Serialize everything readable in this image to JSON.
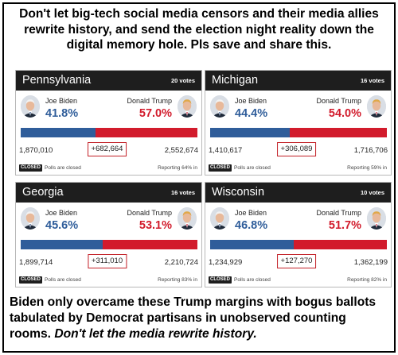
{
  "headline": "Don't let big-tech social media censors and their media allies rewrite history, and send the election night reality down the digital memory hole. Pls save and share this.",
  "footer": {
    "text": "Biden only overcame these Trump margins with bogus ballots tabulated by Democrat partisans in unobserved counting rooms. ",
    "emphasis": "Don't let the media rewrite history."
  },
  "colors": {
    "dem": "#2f5d9a",
    "rep": "#d21b2c",
    "header": "#1e1e1e",
    "margin_box": "#c21f26"
  },
  "cards": [
    {
      "state": "Pennsylvania",
      "votes": "20 votes",
      "dem_name": "Joe Biden",
      "dem_pct": "41.8%",
      "dem_votes": "1,870,010",
      "rep_name": "Donald Trump",
      "rep_pct": "57.0%",
      "rep_votes": "2,552,674",
      "margin": "+682,664",
      "status_badge": "CLOSED",
      "status_text": "Polls are closed",
      "reporting": "Reporting 64% in",
      "dem_share": 0.418,
      "rep_share": 0.57,
      "dem_avatar": "biden-photo",
      "rep_avatar": "trump-photo"
    },
    {
      "state": "Michigan",
      "votes": "16 votes",
      "dem_name": "Joe Biden",
      "dem_pct": "44.4%",
      "dem_votes": "1,410,617",
      "rep_name": "Donald Trump",
      "rep_pct": "54.0%",
      "rep_votes": "1,716,706",
      "margin": "+306,089",
      "status_badge": "CLOSED",
      "status_text": "Polls are closed",
      "reporting": "Reporting 59% in",
      "dem_share": 0.444,
      "rep_share": 0.54,
      "dem_avatar": "biden-photo",
      "rep_avatar": "trump-photo"
    },
    {
      "state": "Georgia",
      "votes": "16 votes",
      "dem_name": "Joe Biden",
      "dem_pct": "45.6%",
      "dem_votes": "1,899,714",
      "rep_name": "Donald Trump",
      "rep_pct": "53.1%",
      "rep_votes": "2,210,724",
      "margin": "+311,010",
      "status_badge": "CLOSED",
      "status_text": "Polls are closed",
      "reporting": "Reporting 83% in",
      "dem_share": 0.456,
      "rep_share": 0.531,
      "dem_avatar": "biden-photo",
      "rep_avatar": "trump-photo"
    },
    {
      "state": "Wisconsin",
      "votes": "10 votes",
      "dem_name": "Joe Biden",
      "dem_pct": "46.8%",
      "dem_votes": "1,234,929",
      "rep_name": "Donald Trump",
      "rep_pct": "51.7%",
      "rep_votes": "1,362,199",
      "margin": "+127,270",
      "status_badge": "CLOSED",
      "status_text": "Polls are closed",
      "reporting": "Reporting 82% in",
      "dem_share": 0.468,
      "rep_share": 0.517,
      "dem_avatar": "biden-photo",
      "rep_avatar": "trump-photo"
    }
  ]
}
